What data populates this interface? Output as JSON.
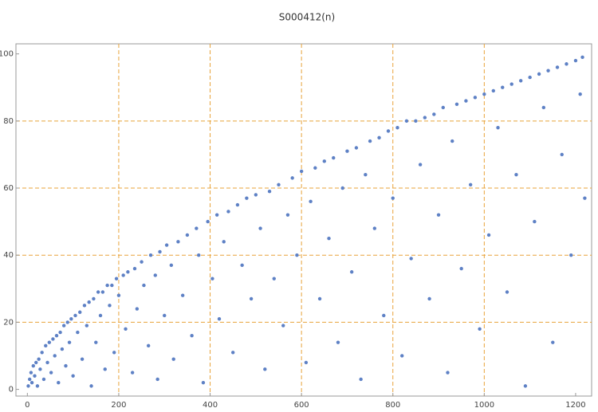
{
  "chart_data": {
    "type": "scatter",
    "title": "S000412(n)",
    "color": "#5e81c5",
    "xlim": [
      -25,
      1235
    ],
    "ylim": [
      -2,
      103
    ],
    "xticks": [
      0,
      200,
      400,
      600,
      800,
      1000,
      1200
    ],
    "yticks": [
      0,
      20,
      40,
      60,
      80,
      100
    ],
    "xgrid": [
      200,
      400,
      600,
      800,
      1000
    ],
    "ygrid": [
      20,
      40,
      60,
      80
    ],
    "x": [
      2,
      5,
      8,
      10,
      13,
      16,
      19,
      22,
      25,
      28,
      32,
      36,
      40,
      44,
      48,
      52,
      56,
      60,
      64,
      68,
      72,
      76,
      80,
      84,
      88,
      92,
      96,
      100,
      105,
      110,
      115,
      120,
      125,
      130,
      135,
      140,
      145,
      150,
      155,
      160,
      165,
      170,
      175,
      180,
      185,
      190,
      195,
      200,
      210,
      215,
      220,
      230,
      235,
      240,
      250,
      255,
      265,
      270,
      280,
      285,
      290,
      300,
      305,
      315,
      320,
      330,
      340,
      350,
      360,
      370,
      375,
      385,
      395,
      405,
      415,
      420,
      430,
      440,
      450,
      460,
      470,
      480,
      490,
      500,
      510,
      520,
      530,
      540,
      550,
      560,
      570,
      580,
      590,
      600,
      610,
      620,
      630,
      640,
      650,
      660,
      670,
      680,
      690,
      700,
      710,
      720,
      730,
      740,
      750,
      760,
      770,
      780,
      790,
      800,
      810,
      820,
      830,
      840,
      850,
      860,
      870,
      880,
      890,
      900,
      910,
      920,
      930,
      940,
      950,
      960,
      970,
      980,
      990,
      1000,
      1010,
      1020,
      1030,
      1040,
      1050,
      1060,
      1070,
      1080,
      1090,
      1100,
      1110,
      1120,
      1130,
      1140,
      1150,
      1160,
      1170,
      1180,
      1190,
      1200,
      1210,
      1215,
      1220
    ],
    "values": [
      1,
      3,
      5,
      2,
      7,
      4,
      8,
      1,
      9,
      6,
      11,
      3,
      13,
      8,
      14,
      5,
      15,
      10,
      16,
      2,
      17,
      12,
      19,
      7,
      20,
      14,
      21,
      4,
      22,
      17,
      23,
      9,
      25,
      19,
      26,
      1,
      27,
      14,
      29,
      22,
      29,
      6,
      31,
      25,
      31,
      11,
      33,
      28,
      34,
      18,
      35,
      5,
      36,
      24,
      38,
      31,
      13,
      40,
      34,
      3,
      41,
      22,
      43,
      37,
      9,
      44,
      28,
      46,
      16,
      48,
      40,
      2,
      50,
      33,
      52,
      21,
      44,
      53,
      11,
      55,
      37,
      57,
      27,
      58,
      48,
      6,
      59,
      33,
      61,
      19,
      52,
      63,
      40,
      65,
      8,
      56,
      66,
      27,
      68,
      45,
      69,
      14,
      60,
      71,
      35,
      72,
      3,
      64,
      74,
      48,
      75,
      22,
      77,
      57,
      78,
      10,
      80,
      39,
      80,
      67,
      81,
      27,
      82,
      52,
      84,
      5,
      74,
      85,
      36,
      86,
      61,
      87,
      18,
      88,
      46,
      89,
      78,
      90,
      29,
      91,
      64,
      92,
      1,
      93,
      50,
      94,
      84,
      95,
      14,
      96,
      70,
      97,
      40,
      98,
      88,
      99,
      57
    ]
  }
}
